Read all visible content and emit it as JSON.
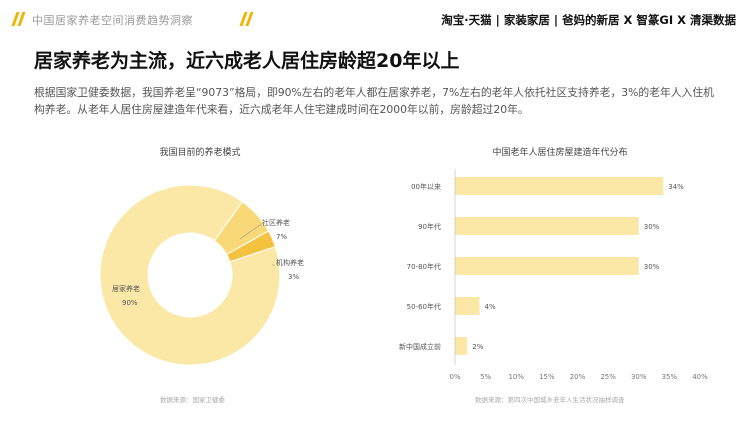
{
  "header": {
    "section_title": "中国居家养老空间消费趋势洞察",
    "brands": "淘宝·天猫 | 家装家居 | 爸妈的新居 X 智篆GI X 清渠数据"
  },
  "headline": "居家养老为主流，近六成老人居住房龄超20年以上",
  "body": "根据国家卫健委数据，我国养老呈“9073”格局，即90%左右的老年人都在居家养老，7%左右的老年人依托社区支持养老，3%的老年人入住机构养老。从老年人居住房屋建造年代来看，近六成老年人住宅建成时间在2000年以前，房龄超过20年。",
  "colors": {
    "donut_main": "#fbe7a6",
    "donut_mid": "#f9d878",
    "donut_small": "#f4c23e",
    "bar": "#fbe7a6",
    "accent": "#f0b400"
  },
  "chart_data": [
    {
      "type": "pie",
      "title": "我国目前的养老模式",
      "labels": [
        "居家养老",
        "社区养老",
        "机构养老"
      ],
      "values": [
        90,
        7,
        3
      ],
      "value_labels": [
        "90%",
        "7%",
        "3%"
      ],
      "source": "数据来源：国家卫健委"
    },
    {
      "type": "bar",
      "orientation": "horizontal",
      "title": "中国老年人居住房屋建造年代分布",
      "categories": [
        "00年以来",
        "90年代",
        "70-80年代",
        "50-60年代",
        "新中国成立前"
      ],
      "values": [
        34,
        30,
        30,
        4,
        2
      ],
      "value_labels": [
        "34%",
        "30%",
        "30%",
        "4%",
        "2%"
      ],
      "xlim": [
        0,
        40
      ],
      "x_ticks": [
        "0%",
        "5%",
        "10%",
        "15%",
        "20%",
        "25%",
        "30%",
        "35%",
        "40%"
      ],
      "source": "数据来源：第四次中国城乡老年人生活状况抽样调查"
    }
  ]
}
